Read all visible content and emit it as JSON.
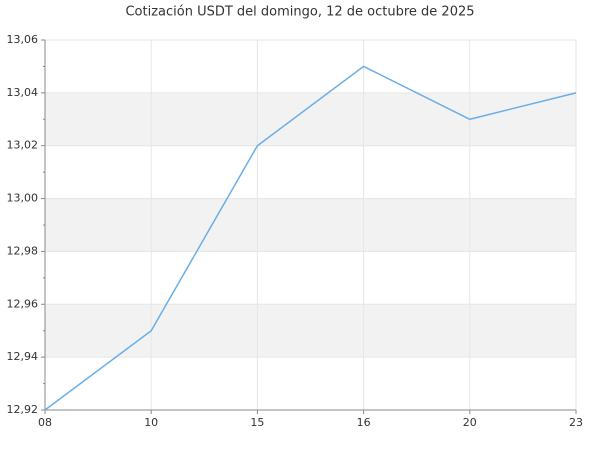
{
  "chart_data": {
    "type": "line",
    "title": "Cotización USDT del domingo, 12 de octubre de 2025",
    "categories": [
      "08",
      "10",
      "15",
      "16",
      "20",
      "23"
    ],
    "values": [
      12.92,
      12.95,
      13.02,
      13.05,
      13.03,
      13.04
    ],
    "color": "#6aaee8",
    "ylim": [
      12.92,
      13.06
    ],
    "yticks": [
      {
        "value": 12.92,
        "label": "12,92"
      },
      {
        "value": 12.94,
        "label": "12,94"
      },
      {
        "value": 12.96,
        "label": "12,96"
      },
      {
        "value": 12.98,
        "label": "12,98"
      },
      {
        "value": 13.0,
        "label": "13,00"
      },
      {
        "value": 13.02,
        "label": "13,02"
      },
      {
        "value": 13.04,
        "label": "13,04"
      },
      {
        "value": 13.06,
        "label": "13,06"
      }
    ],
    "grid": true
  }
}
